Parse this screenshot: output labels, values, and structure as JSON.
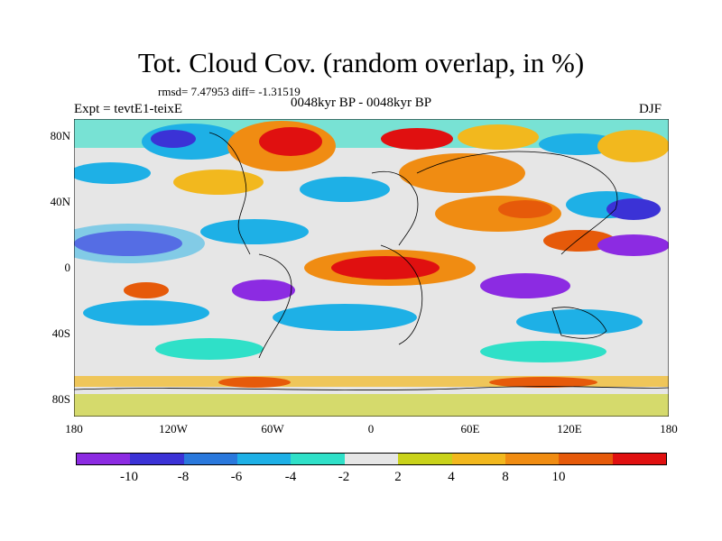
{
  "title": "Tot. Cloud Cov. (random overlap, in %)",
  "stats": "rmsd= 7.47953 diff= -1.31519",
  "expt": "Expt = tevtE1-teixE",
  "period": "0048kyr BP - 0048kyr BP",
  "season": "DJF",
  "lat_labels": [
    "80N",
    "40N",
    "0",
    "40S",
    "80S"
  ],
  "lon_labels": [
    "180",
    "120W",
    "60W",
    "0",
    "60E",
    "120E",
    "180"
  ],
  "colorbar": {
    "colors": [
      "#8c2be2",
      "#3b32d6",
      "#2a78dc",
      "#1eb0e6",
      "#2fe0c8",
      "#e6e6e6",
      "#c9d21a",
      "#f2b81e",
      "#f08c12",
      "#e65a0a",
      "#e01010"
    ],
    "labels": [
      "-10",
      "-8",
      "-6",
      "-4",
      "-2",
      "2",
      "4",
      "8",
      "10"
    ]
  }
}
